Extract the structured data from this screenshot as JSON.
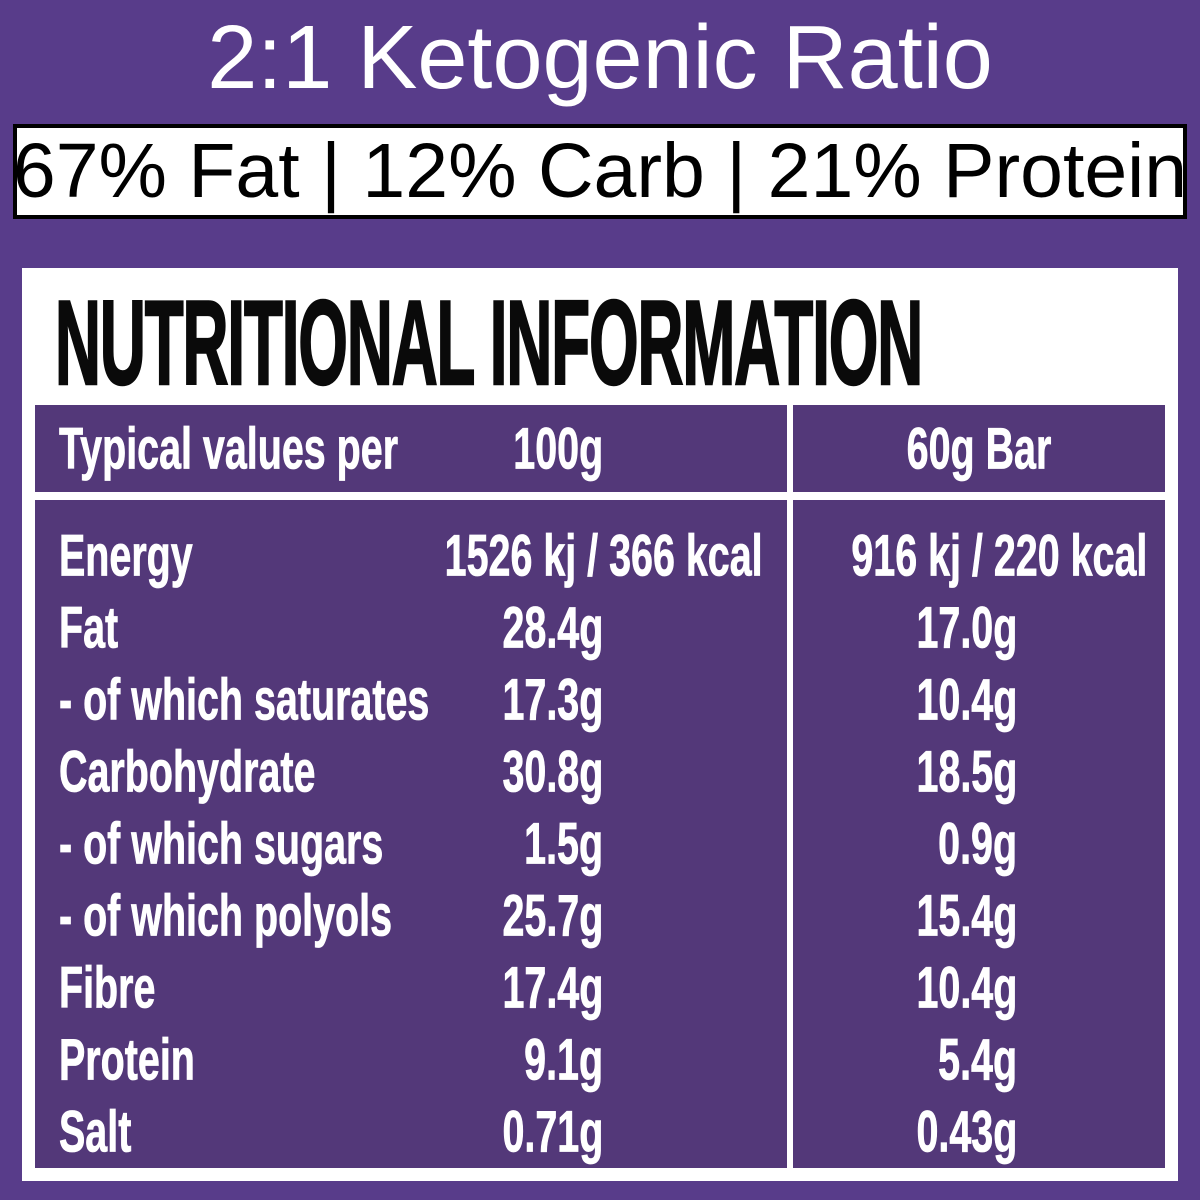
{
  "header": {
    "ratio_title": "2:1 Ketogenic Ratio",
    "macro_banner": "67% Fat | 12% Carb | 21% Protein"
  },
  "panel": {
    "title": "NUTRITIONAL INFORMATION",
    "columns": {
      "label": "Typical values per",
      "col_100g": "100g",
      "col_60g_bar": "60g Bar"
    },
    "rows": [
      {
        "label": "Energy",
        "per_100g": "1526 kj / 366 kcal",
        "per_60g_bar": "916 kj / 220 kcal"
      },
      {
        "label": "Fat",
        "per_100g": "28.4g",
        "per_60g_bar": "17.0g"
      },
      {
        "label": "- of which saturates",
        "per_100g": "17.3g",
        "per_60g_bar": "10.4g"
      },
      {
        "label": "Carbohydrate",
        "per_100g": "30.8g",
        "per_60g_bar": "18.5g"
      },
      {
        "label": "- of which sugars",
        "per_100g": "1.5g",
        "per_60g_bar": "0.9g"
      },
      {
        "label": "- of which polyols",
        "per_100g": "25.7g",
        "per_60g_bar": "15.4g"
      },
      {
        "label": "Fibre",
        "per_100g": "17.4g",
        "per_60g_bar": "10.4g"
      },
      {
        "label": "Protein",
        "per_100g": "9.1g",
        "per_60g_bar": "5.4g"
      },
      {
        "label": "Salt",
        "per_100g": "0.71g",
        "per_60g_bar": "0.43g"
      }
    ]
  },
  "colors": {
    "page_background": "#583c8a",
    "table_cell_purple": "#533879",
    "card_background": "#ffffff",
    "text_on_purple": "#ffffff",
    "text_on_white": "#000000"
  }
}
